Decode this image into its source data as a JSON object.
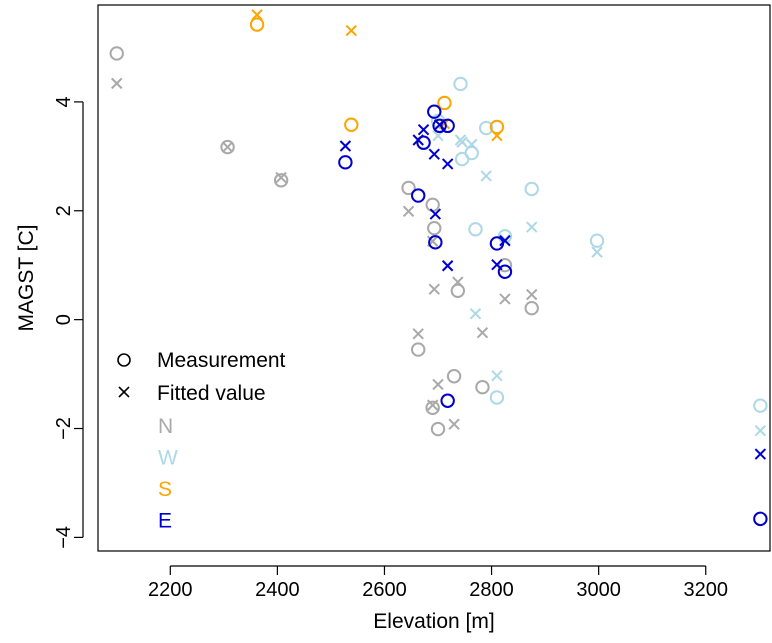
{
  "chart_data": {
    "type": "scatter",
    "title": "",
    "xlabel": "Elevation [m]",
    "ylabel": "MAGST [C]",
    "xlim": [
      2065,
      3320
    ],
    "ylim": [
      -4.25,
      5.78
    ],
    "xticks": [
      2200,
      2400,
      2600,
      2800,
      3000,
      3200
    ],
    "yticks": [
      -4,
      -2,
      0,
      2,
      4
    ],
    "grid": false,
    "legend_position": "bottom-left",
    "legend_markers": [
      {
        "symbol": "circle",
        "label": "Measurement"
      },
      {
        "symbol": "cross",
        "label": "Fitted value"
      }
    ],
    "series": [
      {
        "name": "N",
        "color": "#a9a9a9",
        "points": [
          {
            "x": 2100,
            "measured": 4.89,
            "fitted": 4.34
          },
          {
            "x": 2307,
            "measured": 3.17,
            "fitted": 3.17
          },
          {
            "x": 2407,
            "measured": 2.56,
            "fitted": 2.61
          },
          {
            "x": 2645,
            "measured": 2.42,
            "fitted": 1.99
          },
          {
            "x": 2663,
            "measured": -0.55,
            "fitted": -0.26
          },
          {
            "x": 2690,
            "measured": 2.11,
            "fitted": 1.44
          },
          {
            "x": 2693,
            "measured": 1.68,
            "fitted": 0.56
          },
          {
            "x": 2690,
            "measured": -1.62,
            "fitted": -1.57
          },
          {
            "x": 2700,
            "measured": -2.01,
            "fitted": -1.19
          },
          {
            "x": 2730,
            "measured": -1.04,
            "fitted": -1.92
          },
          {
            "x": 2737,
            "measured": 0.53,
            "fitted": 0.69
          },
          {
            "x": 2783,
            "measured": -1.24,
            "fitted": -0.24
          },
          {
            "x": 2875,
            "measured": 0.21,
            "fitted": 0.46
          },
          {
            "x": 2825,
            "measured": 1.0,
            "fitted": 0.38
          }
        ]
      },
      {
        "name": "W",
        "color": "#add8e6",
        "points": [
          {
            "x": 2742,
            "measured": 4.33,
            "fitted": 3.3
          },
          {
            "x": 2790,
            "measured": 3.52,
            "fitted": 2.64
          },
          {
            "x": 2745,
            "measured": 2.95,
            "fitted": 3.26
          },
          {
            "x": 2763,
            "measured": 3.06,
            "fitted": 3.22
          },
          {
            "x": 2770,
            "measured": 1.66,
            "fitted": 0.11
          },
          {
            "x": 2810,
            "measured": -1.43,
            "fitted": -1.03
          },
          {
            "x": 2825,
            "measured": 1.53,
            "fitted": 1.47
          },
          {
            "x": 2875,
            "measured": 2.4,
            "fitted": 1.7
          },
          {
            "x": 2997,
            "measured": 1.45,
            "fitted": 1.24
          },
          {
            "x": 3302,
            "measured": -1.58,
            "fitted": -2.04
          },
          {
            "x": 2700,
            "measured": 3.65,
            "fitted": 3.38
          }
        ]
      },
      {
        "name": "S",
        "color": "#ffa500",
        "points": [
          {
            "x": 2362,
            "measured": 5.42,
            "fitted": 5.6
          },
          {
            "x": 2538,
            "measured": 3.58,
            "fitted": 5.31
          },
          {
            "x": 2712,
            "measured": 3.98,
            "fitted": 3.6
          },
          {
            "x": 2810,
            "measured": 3.54,
            "fitted": 3.38
          }
        ]
      },
      {
        "name": "E",
        "color": "#0000cd",
        "points": [
          {
            "x": 2527,
            "measured": 2.89,
            "fitted": 3.19
          },
          {
            "x": 2663,
            "measured": 2.28,
            "fitted": 3.3
          },
          {
            "x": 2673,
            "measured": 3.25,
            "fitted": 3.49
          },
          {
            "x": 2693,
            "measured": 3.82,
            "fitted": 3.04
          },
          {
            "x": 2703,
            "measured": 3.56,
            "fitted": 3.58
          },
          {
            "x": 2718,
            "measured": 3.56,
            "fitted": 2.86
          },
          {
            "x": 2695,
            "measured": 1.42,
            "fitted": 1.94
          },
          {
            "x": 2718,
            "measured": -1.49,
            "fitted": 0.99
          },
          {
            "x": 2810,
            "measured": 1.4,
            "fitted": 1.01
          },
          {
            "x": 2825,
            "measured": 0.88,
            "fitted": 1.45
          },
          {
            "x": 3302,
            "measured": -3.66,
            "fitted": -2.47
          }
        ]
      }
    ]
  }
}
